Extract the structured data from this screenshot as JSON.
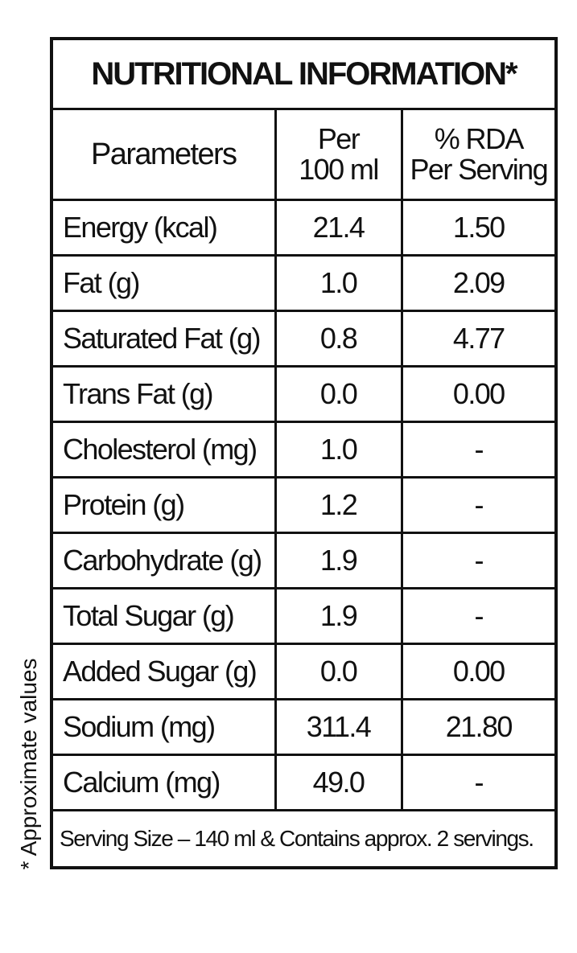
{
  "title": "NUTRITIONAL INFORMATION*",
  "side_note": "* Approximate values",
  "table": {
    "header": [
      [
        "Parameters"
      ],
      [
        "Per",
        "100 ml"
      ],
      [
        "% RDA",
        "Per Serving"
      ]
    ],
    "rows": [
      [
        "Energy (kcal)",
        "21.4",
        "1.50"
      ],
      [
        "Fat (g)",
        "1.0",
        "2.09"
      ],
      [
        "Saturated Fat (g)",
        "0.8",
        "4.77"
      ],
      [
        "Trans Fat (g)",
        "0.0",
        "0.00"
      ],
      [
        "Cholesterol (mg)",
        "1.0",
        "-"
      ],
      [
        "Protein (g)",
        "1.2",
        "-"
      ],
      [
        "Carbohydrate (g)",
        "1.9",
        "-"
      ],
      [
        "Total Sugar (g)",
        "1.9",
        "-"
      ],
      [
        "Added Sugar (g)",
        "0.0",
        "0.00"
      ],
      [
        "Sodium (mg)",
        "311.4",
        "21.80"
      ],
      [
        "Calcium (mg)",
        "49.0",
        "-"
      ]
    ]
  },
  "footer": "Serving Size – 140 ml & Contains approx. 2 servings."
}
